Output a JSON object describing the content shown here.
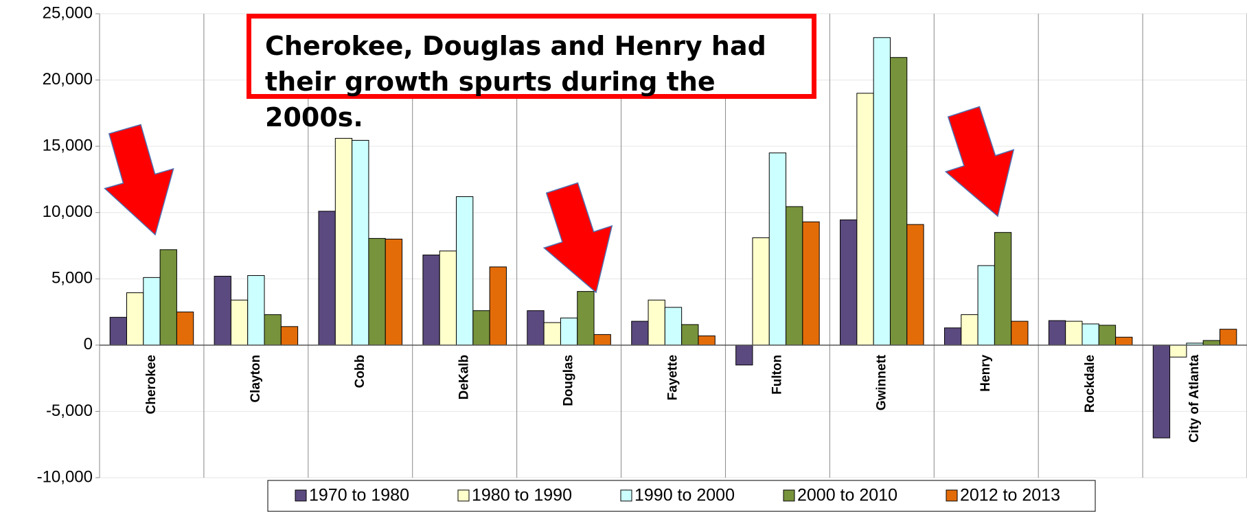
{
  "chart_data": {
    "type": "bar",
    "annotation": "Cherokee, Douglas and Henry had their growth spurts during the 2000s.",
    "categories": [
      "Cherokee",
      "Clayton",
      "Cobb",
      "DeKalb",
      "Douglas",
      "Fayette",
      "Fulton",
      "Gwinnett",
      "Henry",
      "Rockdale",
      "City of Atlanta"
    ],
    "series": [
      {
        "name": "1970 to 1980",
        "color": "#5b4a7f",
        "values": [
          2100,
          5200,
          10100,
          6800,
          2600,
          1800,
          -1500,
          9450,
          1300,
          1850,
          -7000
        ]
      },
      {
        "name": "1980 to 1990",
        "color": "#ffffcc",
        "values": [
          3950,
          3400,
          15600,
          7100,
          1700,
          3400,
          8100,
          19000,
          2300,
          1800,
          -900
        ]
      },
      {
        "name": "1990 to 2000",
        "color": "#ccffff",
        "values": [
          5100,
          5250,
          15450,
          11200,
          2050,
          2850,
          14500,
          23200,
          6000,
          1600,
          150
        ]
      },
      {
        "name": "2000 to 2010",
        "color": "#77933c",
        "values": [
          7200,
          2300,
          8050,
          2600,
          4050,
          1550,
          10450,
          21700,
          8500,
          1500,
          350
        ]
      },
      {
        "name": "2012 to 2013",
        "color": "#e36c09",
        "values": [
          2500,
          1400,
          8000,
          5900,
          800,
          700,
          9300,
          9100,
          1800,
          600,
          1200
        ]
      }
    ],
    "ylim": [
      -10000,
      25000
    ],
    "yticks": [
      {
        "value": -10000,
        "label": "-10,000"
      },
      {
        "value": -5000,
        "label": "-5,000"
      },
      0,
      {
        "value": 5000,
        "label": "5,000"
      },
      {
        "value": 10000,
        "label": "10,000"
      },
      {
        "value": 15000,
        "label": "15,000"
      },
      {
        "value": 20000,
        "label": "20,000"
      },
      {
        "value": 25000,
        "label": "25,000"
      }
    ],
    "grid": true
  }
}
